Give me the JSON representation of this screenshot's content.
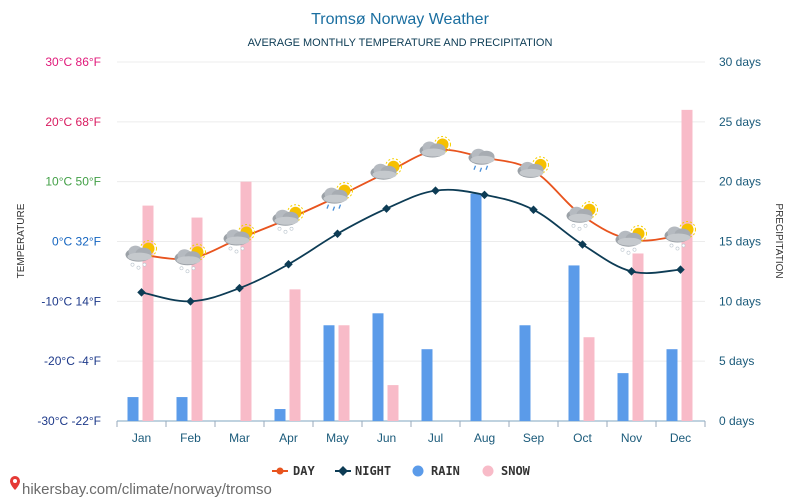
{
  "chart_data": {
    "type": "bar",
    "title": "Tromsø Norway Weather",
    "subtitle": "AVERAGE MONTHLY TEMPERATURE AND PRECIPITATION",
    "ylabel_left": "TEMPERATURE",
    "ylabel_right": "PRECIPITATION",
    "categories": [
      "Jan",
      "Feb",
      "Mar",
      "Apr",
      "May",
      "Jun",
      "Jul",
      "Aug",
      "Sep",
      "Oct",
      "Nov",
      "Dec"
    ],
    "temp_ticks": [
      {
        "c": 30,
        "label": "30°C 86°F",
        "color": "#e0197a"
      },
      {
        "c": 20,
        "label": "20°C 68°F",
        "color": "#d81b60"
      },
      {
        "c": 10,
        "label": "10°C 50°F",
        "color": "#43a047"
      },
      {
        "c": 0,
        "label": "0°C 32°F",
        "color": "#1565c0"
      },
      {
        "c": -10,
        "label": "-10°C 14°F",
        "color": "#1e3a8a"
      },
      {
        "c": -20,
        "label": "-20°C -4°F",
        "color": "#1e3a8a"
      },
      {
        "c": -30,
        "label": "-30°C -22°F",
        "color": "#1e3a8a"
      }
    ],
    "temp_range": [
      -30,
      30
    ],
    "days_ticks": [
      {
        "d": 30,
        "label": "30 days"
      },
      {
        "d": 25,
        "label": "25 days"
      },
      {
        "d": 20,
        "label": "20 days"
      },
      {
        "d": 15,
        "label": "15 days"
      },
      {
        "d": 10,
        "label": "10 days"
      },
      {
        "d": 5,
        "label": "5 days"
      },
      {
        "d": 0,
        "label": "0 days"
      }
    ],
    "days_range": [
      0,
      30
    ],
    "series": [
      {
        "name": "DAY",
        "kind": "line",
        "color": "#e8541e",
        "values": [
          -2.2,
          -2.8,
          0.5,
          3.8,
          7.5,
          11.5,
          15.2,
          14.0,
          11.8,
          4.3,
          0.3,
          1.0
        ]
      },
      {
        "name": "NIGHT",
        "kind": "line",
        "color": "#0d3c55",
        "values": [
          -8.5,
          -10.0,
          -7.8,
          -3.8,
          1.3,
          5.5,
          8.5,
          7.8,
          5.3,
          -0.5,
          -5.0,
          -4.7
        ]
      },
      {
        "name": "RAIN",
        "kind": "bar",
        "color": "#5b9be9",
        "values": [
          2,
          2,
          0,
          1,
          8,
          9,
          6,
          19,
          8,
          13,
          4,
          6
        ]
      },
      {
        "name": "SNOW",
        "kind": "bar",
        "color": "#f8bbc8",
        "values": [
          18,
          17,
          20,
          11,
          8,
          3,
          0,
          0,
          0,
          7,
          14,
          26
        ]
      }
    ],
    "weather_icons": [
      "snow-cloud-sun-icon",
      "snow-cloud-sun-icon",
      "snow-cloud-sun-icon",
      "snow-cloud-sun-icon",
      "rain-cloud-sun-icon",
      "cloud-sun-icon",
      "cloud-sun-icon",
      "rain-cloud-icon",
      "cloud-sun-icon",
      "snow-cloud-sun-icon",
      "snow-cloud-sun-icon",
      "snow-cloud-sun-icon"
    ],
    "legend_position": "bottom",
    "grid": true
  },
  "footer": {
    "source": "hikersbay.com/climate/norway/tromso"
  }
}
